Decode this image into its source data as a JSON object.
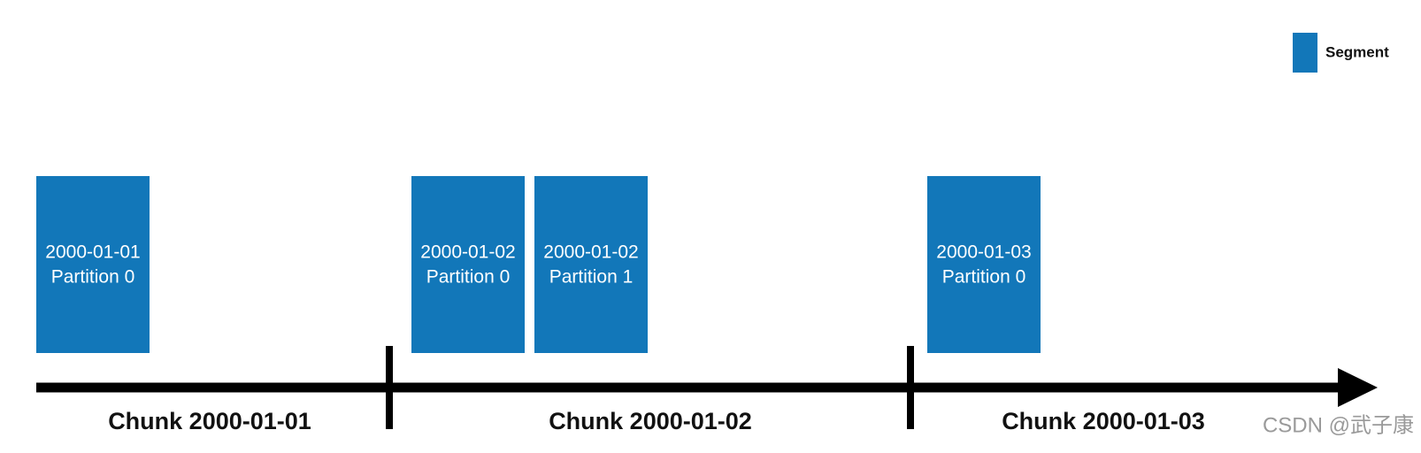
{
  "legend": {
    "label": "Segment"
  },
  "segments": [
    {
      "date": "2000-01-01",
      "partition": "Partition 0"
    },
    {
      "date": "2000-01-02",
      "partition": "Partition 0"
    },
    {
      "date": "2000-01-02",
      "partition": "Partition 1"
    },
    {
      "date": "2000-01-03",
      "partition": "Partition 0"
    }
  ],
  "chunks": [
    "Chunk 2000-01-01",
    "Chunk 2000-01-02",
    "Chunk 2000-01-03"
  ],
  "watermark": "CSDN @武子康"
}
